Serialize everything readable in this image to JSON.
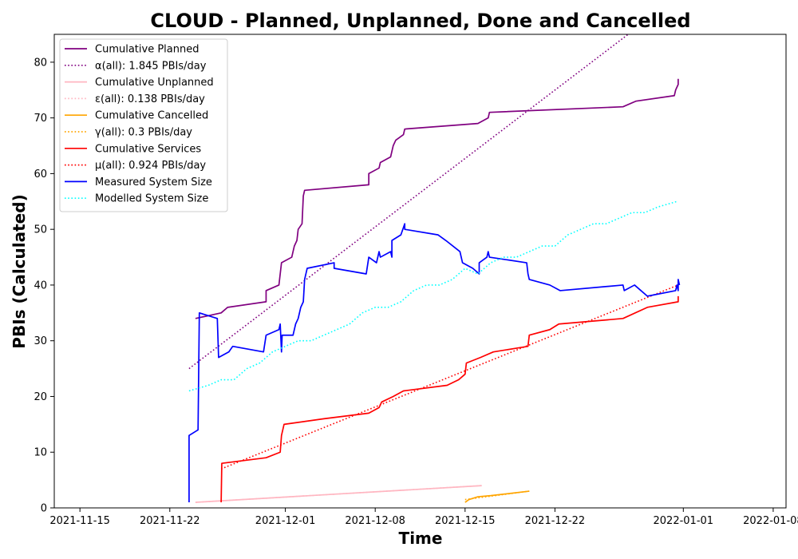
{
  "chart_data": {
    "type": "line",
    "title": "CLOUD - Planned, Unplanned, Done  and Cancelled",
    "xlabel": "Time",
    "ylabel": "PBIs (Calculated)",
    "xlim": [
      "2021-11-13",
      "2022-01-09"
    ],
    "ylim": [
      0,
      85
    ],
    "x_ticks": [
      "2021-11-15",
      "2021-11-22",
      "2021-12-01",
      "2021-12-08",
      "2021-12-15",
      "2021-12-22",
      "2022-01-01",
      "2022-01-08"
    ],
    "y_ticks": [
      0,
      10,
      20,
      30,
      40,
      50,
      60,
      70,
      80
    ],
    "grid": false,
    "legend_position": "upper-left",
    "series": [
      {
        "name": "Cumulative Planned",
        "color": "#800080",
        "style": "solid",
        "points": [
          [
            "2021-11-24",
            34
          ],
          [
            "2021-11-26",
            35
          ],
          [
            "2021-11-26.5",
            36
          ],
          [
            "2021-11-29.5",
            37
          ],
          [
            "2021-11-29.5",
            39
          ],
          [
            "2021-11-30.5",
            40
          ],
          [
            "2021-11-30.6",
            42
          ],
          [
            "2021-11-30.7",
            44
          ],
          [
            "2021-12-01.5",
            45
          ],
          [
            "2021-12-01.7",
            47
          ],
          [
            "2021-12-01.9",
            48
          ],
          [
            "2021-12-02",
            50
          ],
          [
            "2021-12-02.3",
            51
          ],
          [
            "2021-12-02.4",
            56
          ],
          [
            "2021-12-02.5",
            57
          ],
          [
            "2021-12-07.5",
            58
          ],
          [
            "2021-12-07.5",
            60
          ],
          [
            "2021-12-08.3",
            61
          ],
          [
            "2021-12-08.4",
            62
          ],
          [
            "2021-12-09.2",
            63
          ],
          [
            "2021-12-09.4",
            65
          ],
          [
            "2021-12-09.6",
            66
          ],
          [
            "2021-12-10.2",
            67
          ],
          [
            "2021-12-10.3",
            68
          ],
          [
            "2021-12-16",
            69
          ],
          [
            "2021-12-16.8",
            70
          ],
          [
            "2021-12-16.9",
            71
          ],
          [
            "2021-12-27.3",
            72
          ],
          [
            "2021-12-28.3",
            73
          ],
          [
            "2021-12-31.3",
            74
          ],
          [
            "2021-12-31.4",
            75
          ],
          [
            "2021-12-31.6",
            76
          ],
          [
            "2021-12-31.6",
            77
          ]
        ]
      },
      {
        "name": "α(all): 1.845 PBIs/day",
        "color": "#800080",
        "style": "dotted",
        "points": [
          [
            "2021-11-23.5",
            25
          ],
          [
            "2021-12-27.7",
            85
          ]
        ]
      },
      {
        "name": "Cumulative Unplanned",
        "color": "#ffb6c1",
        "style": "solid",
        "points": [
          [
            "2021-11-24",
            1
          ],
          [
            "2021-12-16.3",
            4
          ]
        ]
      },
      {
        "name": "ε(all): 0.138 PBIs/day",
        "color": "#ffb6c1",
        "style": "dotted",
        "points": [
          [
            "2021-11-24",
            1
          ],
          [
            "2021-12-16.3",
            4
          ]
        ]
      },
      {
        "name": "Cumulative Cancelled",
        "color": "#ffa500",
        "style": "solid",
        "points": [
          [
            "2021-12-15",
            1
          ],
          [
            "2021-12-15.3",
            1.5
          ],
          [
            "2021-12-16",
            2
          ],
          [
            "2021-12-17",
            2.2
          ],
          [
            "2021-12-20",
            3
          ]
        ]
      },
      {
        "name": "γ(all): 0.3 PBIs/day",
        "color": "#ffa500",
        "style": "dotted",
        "points": [
          [
            "2021-12-15",
            1.5
          ],
          [
            "2021-12-20",
            3
          ]
        ]
      },
      {
        "name": "Cumulative Services",
        "color": "#ff0000",
        "style": "solid",
        "points": [
          [
            "2021-11-26",
            1
          ],
          [
            "2021-11-26.05",
            8
          ],
          [
            "2021-11-29.5",
            9
          ],
          [
            "2021-11-30.6",
            10
          ],
          [
            "2021-11-30.7",
            13
          ],
          [
            "2021-11-30.8",
            14
          ],
          [
            "2021-11-30.9",
            15
          ],
          [
            "2021-12-04",
            16
          ],
          [
            "2021-12-07.5",
            17
          ],
          [
            "2021-12-08.3",
            18
          ],
          [
            "2021-12-08.5",
            19
          ],
          [
            "2021-12-09.4",
            20
          ],
          [
            "2021-12-10.2",
            21
          ],
          [
            "2021-12-13.6",
            22
          ],
          [
            "2021-12-14.5",
            23
          ],
          [
            "2021-12-15",
            24
          ],
          [
            "2021-12-15.1",
            26
          ],
          [
            "2021-12-16.2",
            27
          ],
          [
            "2021-12-17.2",
            28
          ],
          [
            "2021-12-19.9",
            29
          ],
          [
            "2021-12-20",
            31
          ],
          [
            "2021-12-21.6",
            32
          ],
          [
            "2021-12-22.3",
            33
          ],
          [
            "2021-12-27.3",
            34
          ],
          [
            "2021-12-29.2",
            36
          ],
          [
            "2021-12-31.6",
            37
          ],
          [
            "2021-12-31.6",
            38
          ]
        ]
      },
      {
        "name": "μ(all): 0.924 PBIs/day",
        "color": "#ff0000",
        "style": "dotted",
        "points": [
          [
            "2021-11-26",
            7
          ],
          [
            "2021-12-31.6",
            40
          ]
        ]
      },
      {
        "name": "Measured System Size",
        "color": "#0000ff",
        "style": "solid",
        "points": [
          [
            "2021-11-23.5",
            1
          ],
          [
            "2021-11-23.5",
            13
          ],
          [
            "2021-11-24.2",
            14
          ],
          [
            "2021-11-24.3",
            35
          ],
          [
            "2021-11-25.7",
            34
          ],
          [
            "2021-11-25.8",
            27
          ],
          [
            "2021-11-26.6",
            28
          ],
          [
            "2021-11-26.9",
            29
          ],
          [
            "2021-11-29.3",
            28
          ],
          [
            "2021-11-29.5",
            31
          ],
          [
            "2021-11-30.5",
            32
          ],
          [
            "2021-11-30.6",
            33
          ],
          [
            "2021-11-30.7",
            28
          ],
          [
            "2021-11-30.75",
            31
          ],
          [
            "2021-12-01.6",
            31
          ],
          [
            "2021-12-01.8",
            33
          ],
          [
            "2021-12-02",
            34
          ],
          [
            "2021-12-02.2",
            36
          ],
          [
            "2021-12-02.4",
            37
          ],
          [
            "2021-12-02.5",
            41
          ],
          [
            "2021-12-02.7",
            43
          ],
          [
            "2021-12-04.8",
            44
          ],
          [
            "2021-12-04.8",
            43
          ],
          [
            "2021-12-07.3",
            42
          ],
          [
            "2021-12-07.5",
            45
          ],
          [
            "2021-12-08.1",
            44
          ],
          [
            "2021-12-08.3",
            46
          ],
          [
            "2021-12-08.4",
            45
          ],
          [
            "2021-12-09.2",
            46
          ],
          [
            "2021-12-09.3",
            45
          ],
          [
            "2021-12-09.3",
            48
          ],
          [
            "2021-12-10",
            49
          ],
          [
            "2021-12-10.3",
            51
          ],
          [
            "2021-12-10.3",
            50
          ],
          [
            "2021-12-12.9",
            49
          ],
          [
            "2021-12-13.5",
            48
          ],
          [
            "2021-12-14.6",
            46
          ],
          [
            "2021-12-14.8",
            44
          ],
          [
            "2021-12-15.6",
            43
          ],
          [
            "2021-12-16.1",
            42
          ],
          [
            "2021-12-16.1",
            44
          ],
          [
            "2021-12-16.7",
            45
          ],
          [
            "2021-12-16.8",
            46
          ],
          [
            "2021-12-16.9",
            45
          ],
          [
            "2021-12-19.8",
            44
          ],
          [
            "2021-12-19.9",
            42
          ],
          [
            "2021-12-20",
            41
          ],
          [
            "2021-12-21.6",
            40
          ],
          [
            "2021-12-22.4",
            39
          ],
          [
            "2021-12-27.3",
            40
          ],
          [
            "2021-12-27.4",
            39
          ],
          [
            "2021-12-28.2",
            40
          ],
          [
            "2021-12-29.2",
            38
          ],
          [
            "2021-12-31.4",
            39
          ],
          [
            "2021-12-31.5",
            40
          ],
          [
            "2021-12-31.6",
            39
          ],
          [
            "2021-12-31.6",
            41
          ],
          [
            "2021-12-31.7",
            40
          ]
        ]
      },
      {
        "name": "Modelled System Size",
        "color": "#00ffff",
        "style": "dotted",
        "points": [
          [
            "2021-11-23.5",
            21
          ],
          [
            "2021-11-25",
            22
          ],
          [
            "2021-11-26",
            23
          ],
          [
            "2021-11-27",
            23
          ],
          [
            "2021-11-28",
            25
          ],
          [
            "2021-11-29",
            26
          ],
          [
            "2021-11-29.5",
            27
          ],
          [
            "2021-11-30",
            28
          ],
          [
            "2021-12-01",
            29
          ],
          [
            "2021-12-02",
            30
          ],
          [
            "2021-12-03",
            30
          ],
          [
            "2021-12-05",
            32
          ],
          [
            "2021-12-06",
            33
          ],
          [
            "2021-12-07",
            35
          ],
          [
            "2021-12-08",
            36
          ],
          [
            "2021-12-09",
            36
          ],
          [
            "2021-12-10",
            37
          ],
          [
            "2021-12-11",
            39
          ],
          [
            "2021-12-12",
            40
          ],
          [
            "2021-12-13",
            40
          ],
          [
            "2021-12-14",
            41
          ],
          [
            "2021-12-15",
            43
          ],
          [
            "2021-12-16",
            42
          ],
          [
            "2021-12-17",
            44
          ],
          [
            "2021-12-18",
            45
          ],
          [
            "2021-12-19",
            45
          ],
          [
            "2021-12-20",
            46
          ],
          [
            "2021-12-21",
            47
          ],
          [
            "2021-12-22",
            47
          ],
          [
            "2021-12-23",
            49
          ],
          [
            "2021-12-24",
            50
          ],
          [
            "2021-12-25",
            51
          ],
          [
            "2021-12-26",
            51
          ],
          [
            "2021-12-27",
            52
          ],
          [
            "2021-12-28",
            53
          ],
          [
            "2021-12-29",
            53
          ],
          [
            "2021-12-30",
            54
          ],
          [
            "2021-12-31.5",
            55
          ]
        ]
      }
    ]
  }
}
